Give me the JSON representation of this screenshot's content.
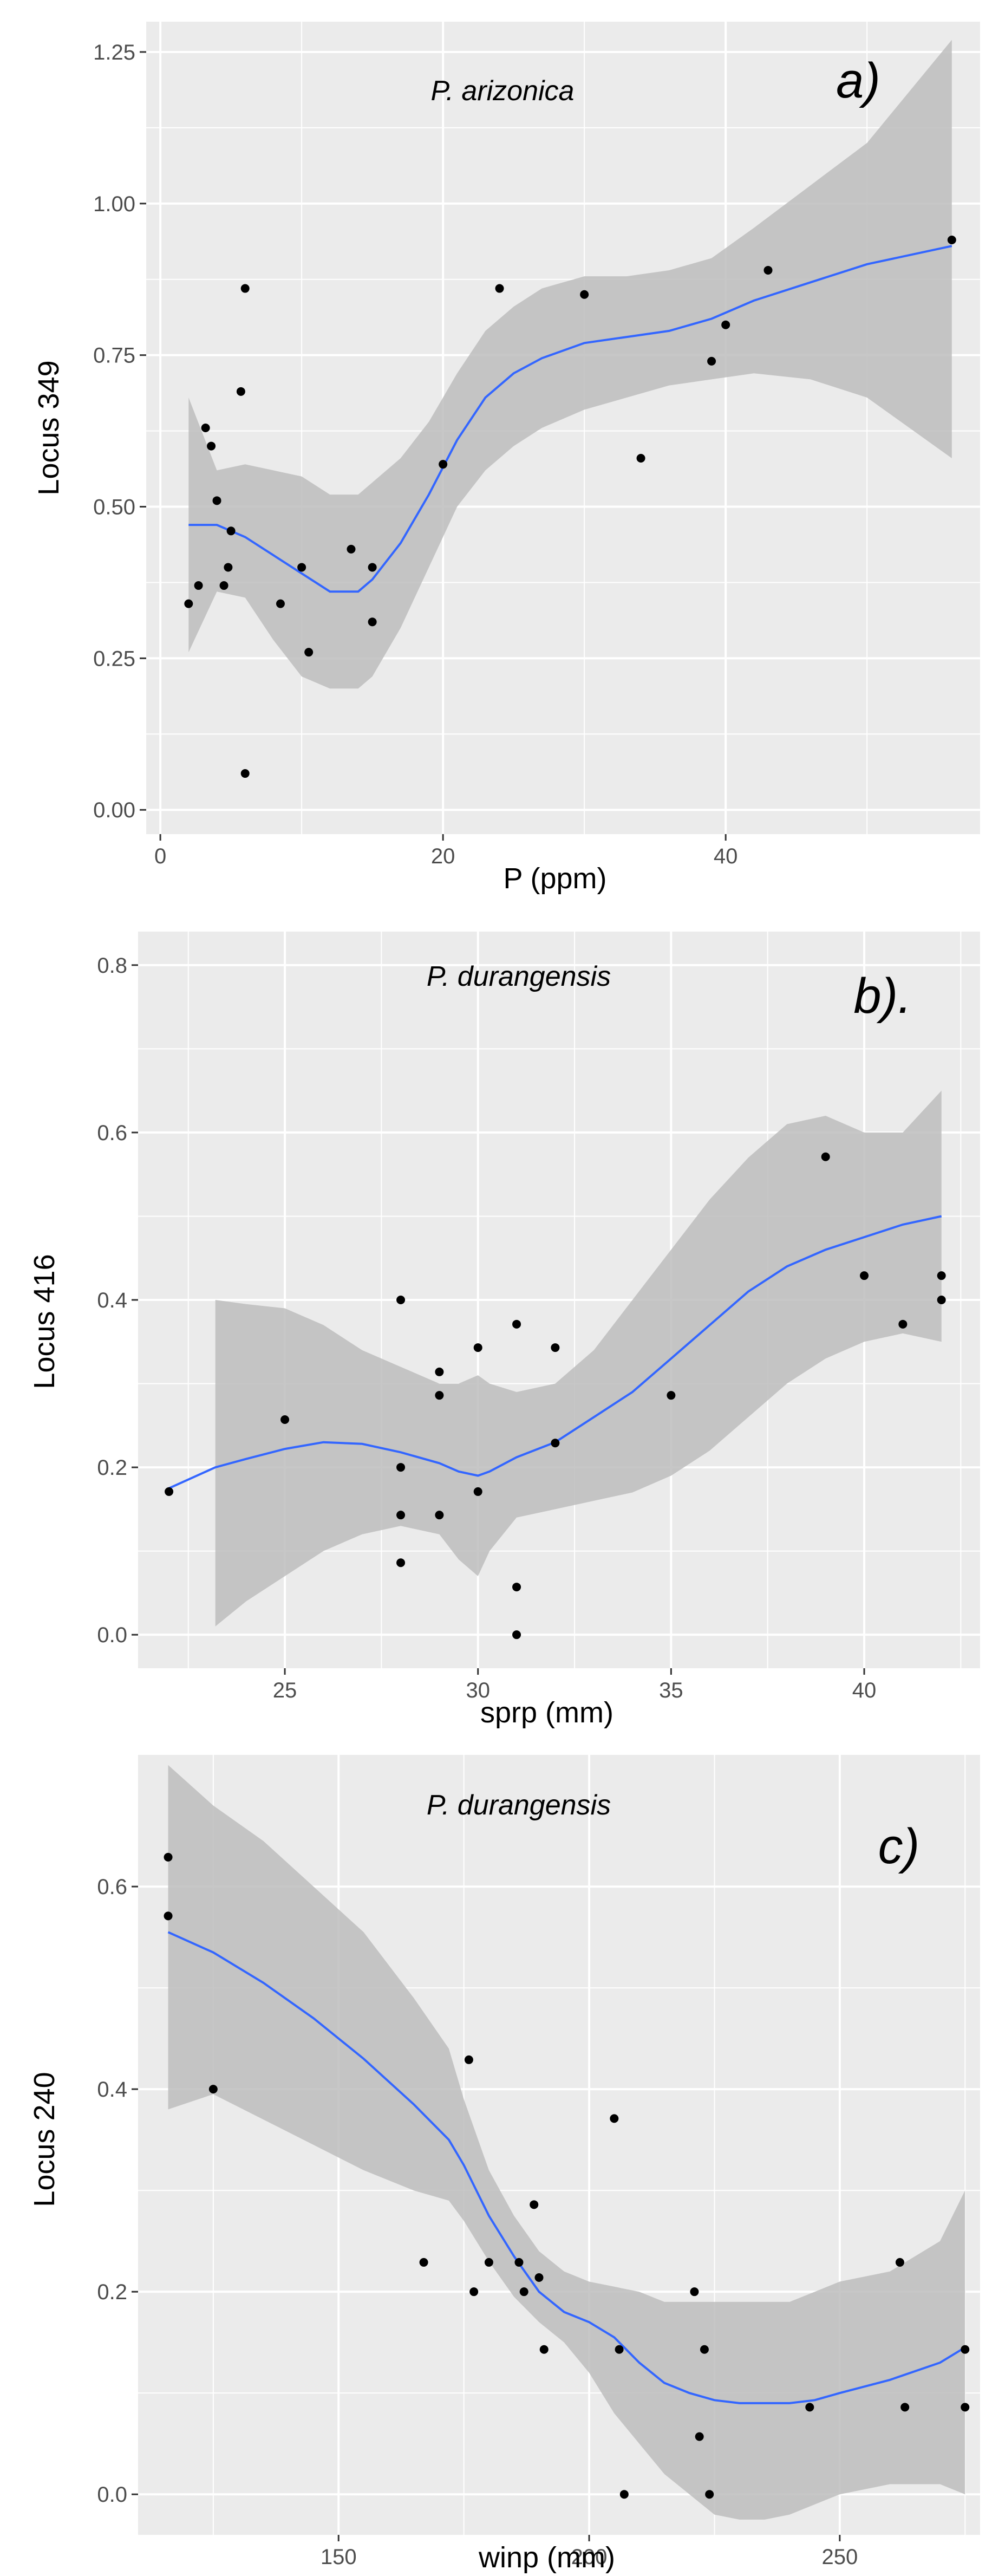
{
  "chart_data": [
    {
      "type": "scatter",
      "panel_label": "a)",
      "title": "P. arizonica",
      "xlabel": "P (ppm)",
      "ylabel": "Locus 349",
      "xlim": [
        -1,
        58
      ],
      "ylim": [
        -0.04,
        1.3
      ],
      "x_ticks": [
        0,
        20,
        40
      ],
      "x_tick_labels": [
        "0",
        "20",
        "40"
      ],
      "y_ticks": [
        0,
        0.25,
        0.5,
        0.75,
        1.0,
        1.25
      ],
      "y_tick_labels": [
        "0.00",
        "0.25",
        "0.50",
        "0.75",
        "1.00",
        "1.25"
      ],
      "points": [
        {
          "x": 2,
          "y": 0.34
        },
        {
          "x": 2.7,
          "y": 0.37
        },
        {
          "x": 3.2,
          "y": 0.63
        },
        {
          "x": 3.6,
          "y": 0.6
        },
        {
          "x": 4,
          "y": 0.51
        },
        {
          "x": 4.5,
          "y": 0.37
        },
        {
          "x": 4.8,
          "y": 0.4
        },
        {
          "x": 5,
          "y": 0.46
        },
        {
          "x": 5.7,
          "y": 0.69
        },
        {
          "x": 6,
          "y": 0.86
        },
        {
          "x": 6,
          "y": 0.06
        },
        {
          "x": 8.5,
          "y": 0.34
        },
        {
          "x": 10,
          "y": 0.4
        },
        {
          "x": 10.5,
          "y": 0.26
        },
        {
          "x": 13.5,
          "y": 0.43
        },
        {
          "x": 15,
          "y": 0.4
        },
        {
          "x": 15,
          "y": 0.31
        },
        {
          "x": 20,
          "y": 0.57
        },
        {
          "x": 24,
          "y": 0.86
        },
        {
          "x": 30,
          "y": 0.85
        },
        {
          "x": 34,
          "y": 0.58
        },
        {
          "x": 39,
          "y": 0.74
        },
        {
          "x": 40,
          "y": 0.8
        },
        {
          "x": 43,
          "y": 0.89
        },
        {
          "x": 56,
          "y": 0.94
        }
      ],
      "smooth": {
        "x": [
          2,
          4,
          6,
          8,
          10,
          12,
          14,
          15,
          17,
          19,
          21,
          23,
          25,
          27,
          30,
          33,
          36,
          39,
          42,
          46,
          50,
          56
        ],
        "y": [
          0.47,
          0.47,
          0.45,
          0.42,
          0.39,
          0.36,
          0.36,
          0.38,
          0.44,
          0.52,
          0.61,
          0.68,
          0.72,
          0.745,
          0.77,
          0.78,
          0.79,
          0.81,
          0.84,
          0.87,
          0.9,
          0.93
        ],
        "lower": [
          0.26,
          0.36,
          0.35,
          0.28,
          0.22,
          0.2,
          0.2,
          0.22,
          0.3,
          0.4,
          0.5,
          0.56,
          0.6,
          0.63,
          0.66,
          0.68,
          0.7,
          0.71,
          0.72,
          0.71,
          0.68,
          0.58
        ],
        "upper": [
          0.68,
          0.56,
          0.57,
          0.56,
          0.55,
          0.52,
          0.52,
          0.54,
          0.58,
          0.64,
          0.72,
          0.79,
          0.83,
          0.86,
          0.88,
          0.88,
          0.89,
          0.91,
          0.96,
          1.03,
          1.1,
          1.27
        ]
      }
    },
    {
      "type": "scatter",
      "panel_label": "b).",
      "title": "P. durangensis",
      "xlabel": "sprp (mm)",
      "ylabel": "Locus 416",
      "xlim": [
        21.2,
        43
      ],
      "ylim": [
        -0.04,
        0.84
      ],
      "x_ticks": [
        25,
        30,
        35,
        40
      ],
      "x_tick_labels": [
        "25",
        "30",
        "35",
        "40"
      ],
      "y_ticks": [
        0,
        0.2,
        0.4,
        0.6,
        0.8
      ],
      "y_tick_labels": [
        "0.0",
        "0.2",
        "0.4",
        "0.6",
        "0.8"
      ],
      "points": [
        {
          "x": 22,
          "y": 0.171
        },
        {
          "x": 25,
          "y": 0.257
        },
        {
          "x": 28,
          "y": 0.4
        },
        {
          "x": 28,
          "y": 0.2
        },
        {
          "x": 28,
          "y": 0.143
        },
        {
          "x": 28,
          "y": 0.086
        },
        {
          "x": 29,
          "y": 0.314
        },
        {
          "x": 29,
          "y": 0.286
        },
        {
          "x": 29,
          "y": 0.143
        },
        {
          "x": 30,
          "y": 0.343
        },
        {
          "x": 30,
          "y": 0.171
        },
        {
          "x": 31,
          "y": 0.371
        },
        {
          "x": 31,
          "y": 0.057
        },
        {
          "x": 31,
          "y": 0.0
        },
        {
          "x": 32,
          "y": 0.343
        },
        {
          "x": 32,
          "y": 0.229
        },
        {
          "x": 35,
          "y": 0.286
        },
        {
          "x": 39,
          "y": 0.571
        },
        {
          "x": 40,
          "y": 0.429
        },
        {
          "x": 41,
          "y": 0.371
        },
        {
          "x": 42,
          "y": 0.429
        },
        {
          "x": 42,
          "y": 0.4
        }
      ],
      "smooth": {
        "x": [
          22,
          23.2,
          24,
          25,
          26,
          27,
          28,
          29,
          29.5,
          30,
          30.3,
          31,
          32,
          33,
          34,
          35,
          36,
          37,
          38,
          39,
          40,
          41,
          42
        ],
        "y": [
          0.175,
          0.2,
          0.21,
          0.222,
          0.23,
          0.228,
          0.218,
          0.205,
          0.195,
          0.19,
          0.195,
          0.212,
          0.23,
          0.26,
          0.29,
          0.33,
          0.37,
          0.41,
          0.44,
          0.46,
          0.475,
          0.49,
          0.5
        ],
        "lower": [
          null,
          0.01,
          0.04,
          0.07,
          0.1,
          0.12,
          0.13,
          0.12,
          0.09,
          0.07,
          0.1,
          0.14,
          0.15,
          0.16,
          0.17,
          0.19,
          0.22,
          0.26,
          0.3,
          0.33,
          0.35,
          0.36,
          0.35
        ],
        "upper": [
          null,
          0.4,
          0.395,
          0.39,
          0.37,
          0.34,
          0.32,
          0.3,
          0.3,
          0.31,
          0.3,
          0.29,
          0.3,
          0.34,
          0.4,
          0.46,
          0.52,
          0.57,
          0.61,
          0.62,
          0.6,
          0.6,
          0.65
        ]
      }
    },
    {
      "type": "scatter",
      "panel_label": "c)",
      "title": "P. durangensis",
      "xlabel": "winp (mm)",
      "ylabel": "Locus 240",
      "xlim": [
        110,
        278
      ],
      "ylim": [
        -0.04,
        0.73
      ],
      "x_ticks": [
        150,
        200,
        250
      ],
      "x_tick_labels": [
        "150",
        "200",
        "250"
      ],
      "y_ticks": [
        0,
        0.2,
        0.4,
        0.6
      ],
      "y_tick_labels": [
        "0.0",
        "0.2",
        "0.4",
        "0.6"
      ],
      "points": [
        {
          "x": 116,
          "y": 0.629
        },
        {
          "x": 116,
          "y": 0.571
        },
        {
          "x": 125,
          "y": 0.4
        },
        {
          "x": 167,
          "y": 0.229
        },
        {
          "x": 176,
          "y": 0.429
        },
        {
          "x": 177,
          "y": 0.2
        },
        {
          "x": 180,
          "y": 0.229
        },
        {
          "x": 186,
          "y": 0.229
        },
        {
          "x": 187,
          "y": 0.2
        },
        {
          "x": 189,
          "y": 0.286
        },
        {
          "x": 190,
          "y": 0.214
        },
        {
          "x": 191,
          "y": 0.143
        },
        {
          "x": 205,
          "y": 0.371
        },
        {
          "x": 206,
          "y": 0.143
        },
        {
          "x": 207,
          "y": 0.0
        },
        {
          "x": 221,
          "y": 0.2
        },
        {
          "x": 222,
          "y": 0.057
        },
        {
          "x": 223,
          "y": 0.143
        },
        {
          "x": 224,
          "y": 0.0
        },
        {
          "x": 244,
          "y": 0.086
        },
        {
          "x": 262,
          "y": 0.229
        },
        {
          "x": 263,
          "y": 0.086
        },
        {
          "x": 275,
          "y": 0.143
        },
        {
          "x": 275,
          "y": 0.086
        }
      ],
      "smooth": {
        "x": [
          116,
          125,
          135,
          145,
          155,
          165,
          172,
          175,
          180,
          185,
          190,
          195,
          200,
          205,
          210,
          215,
          220,
          225,
          230,
          235,
          240,
          245,
          250,
          260,
          270,
          275
        ],
        "y": [
          0.555,
          0.535,
          0.505,
          0.47,
          0.43,
          0.385,
          0.35,
          0.325,
          0.275,
          0.235,
          0.2,
          0.18,
          0.17,
          0.155,
          0.13,
          0.11,
          0.1,
          0.093,
          0.09,
          0.09,
          0.09,
          0.093,
          0.1,
          0.113,
          0.13,
          0.145
        ],
        "lower": [
          0.38,
          0.395,
          0.37,
          0.345,
          0.32,
          0.3,
          0.29,
          0.27,
          0.23,
          0.195,
          0.17,
          0.15,
          0.12,
          0.08,
          0.05,
          0.02,
          0.0,
          -0.02,
          -0.025,
          -0.025,
          -0.02,
          -0.01,
          0.0,
          0.01,
          0.01,
          0.0
        ],
        "upper": [
          0.72,
          0.68,
          0.645,
          0.6,
          0.555,
          0.49,
          0.44,
          0.39,
          0.32,
          0.275,
          0.24,
          0.22,
          0.21,
          0.205,
          0.2,
          0.19,
          0.19,
          0.19,
          0.19,
          0.19,
          0.19,
          0.2,
          0.21,
          0.22,
          0.25,
          0.3
        ]
      }
    }
  ],
  "colors": {
    "panel_bg": "#ebebeb",
    "grid": "#ffffff",
    "ribbon": "#bdbdbd",
    "smooth_line": "#3366ff",
    "points": "#000000"
  }
}
